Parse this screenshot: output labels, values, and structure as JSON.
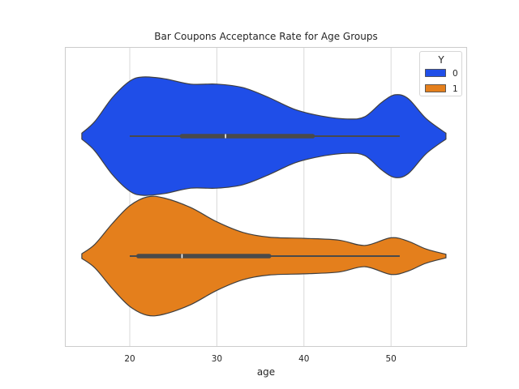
{
  "chart_data": {
    "type": "violin",
    "orientation": "horizontal",
    "title": "Bar Coupons Acceptance Rate for Age Groups",
    "xlabel": "age",
    "ylabel": "",
    "xlim": [
      13.5,
      59.5
    ],
    "xticks": [
      20,
      30,
      40,
      50
    ],
    "grid": true,
    "legend": {
      "title": "Y",
      "placement": "upper-right"
    },
    "series": [
      {
        "name": "0",
        "color": "#1f4ee8",
        "box": {
          "whisker_low": 20,
          "q1": 26,
          "median": 31,
          "q3": 41,
          "whisker_high": 51
        },
        "density": [
          [
            14.5,
            0.05
          ],
          [
            16,
            0.25
          ],
          [
            18,
            0.65
          ],
          [
            20,
            0.93
          ],
          [
            21.5,
            1.0
          ],
          [
            24,
            0.97
          ],
          [
            27,
            0.88
          ],
          [
            30,
            0.88
          ],
          [
            33,
            0.82
          ],
          [
            36,
            0.65
          ],
          [
            39,
            0.45
          ],
          [
            42,
            0.34
          ],
          [
            45,
            0.29
          ],
          [
            47,
            0.33
          ],
          [
            49,
            0.58
          ],
          [
            50.5,
            0.7
          ],
          [
            52,
            0.63
          ],
          [
            54,
            0.3
          ],
          [
            56.3,
            0.05
          ]
        ]
      },
      {
        "name": "1",
        "color": "#e47f1c",
        "box": {
          "whisker_low": 20,
          "q1": 21,
          "median": 26,
          "q3": 36,
          "whisker_high": 51
        },
        "density": [
          [
            14.5,
            0.04
          ],
          [
            16,
            0.2
          ],
          [
            18,
            0.55
          ],
          [
            20,
            0.85
          ],
          [
            22,
            1.0
          ],
          [
            24,
            0.98
          ],
          [
            27,
            0.82
          ],
          [
            30,
            0.58
          ],
          [
            33,
            0.4
          ],
          [
            36,
            0.32
          ],
          [
            40,
            0.3
          ],
          [
            44,
            0.27
          ],
          [
            47,
            0.18
          ],
          [
            50,
            0.31
          ],
          [
            52,
            0.25
          ],
          [
            54,
            0.12
          ],
          [
            56.3,
            0.03
          ]
        ]
      }
    ]
  }
}
